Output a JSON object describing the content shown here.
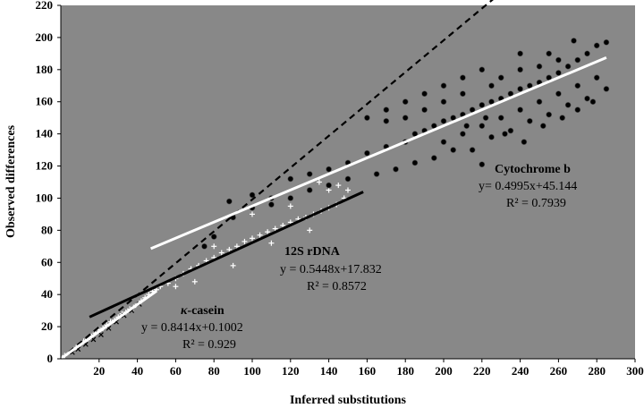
{
  "chart_data": {
    "type": "scatter",
    "xlabel": "Inferred substitutions",
    "ylabel": "Observed differences",
    "xlim": [
      0,
      300
    ],
    "ylim": [
      0,
      220
    ],
    "xticks": [
      "20",
      "40",
      "60",
      "80",
      "100",
      "120",
      "140",
      "160",
      "180",
      "200",
      "220",
      "240",
      "260",
      "280",
      "300"
    ],
    "yticks": [
      "0",
      "20",
      "40",
      "60",
      "80",
      "100",
      "120",
      "140",
      "160",
      "180",
      "200",
      "220"
    ],
    "grid": false,
    "legend": "none",
    "background_color": "#888888",
    "series": [
      {
        "marker": "plus",
        "color": "#ffffff",
        "points": [
          [
            2,
            2
          ],
          [
            5,
            4
          ],
          [
            8,
            7
          ],
          [
            10,
            9
          ],
          [
            12,
            11
          ],
          [
            14,
            12
          ],
          [
            16,
            14
          ],
          [
            18,
            16
          ],
          [
            20,
            18
          ],
          [
            22,
            19
          ],
          [
            24,
            21
          ],
          [
            26,
            23
          ],
          [
            28,
            24
          ],
          [
            30,
            26
          ],
          [
            32,
            28
          ],
          [
            34,
            29
          ],
          [
            36,
            31
          ],
          [
            38,
            32
          ],
          [
            40,
            34
          ],
          [
            42,
            36
          ],
          [
            44,
            38
          ],
          [
            46,
            40
          ],
          [
            50,
            43
          ]
        ]
      },
      {
        "marker": "cross",
        "color": "#000000",
        "points": [
          [
            6,
            4
          ],
          [
            9,
            6
          ],
          [
            13,
            9
          ],
          [
            17,
            12
          ],
          [
            21,
            15
          ],
          [
            25,
            19
          ],
          [
            29,
            23
          ],
          [
            33,
            27
          ],
          [
            37,
            30
          ],
          [
            41,
            34
          ]
        ]
      },
      {
        "marker": "plus",
        "color": "#ffffff",
        "points": [
          [
            48,
            42
          ],
          [
            52,
            45
          ],
          [
            56,
            47
          ],
          [
            60,
            50
          ],
          [
            64,
            53
          ],
          [
            68,
            56
          ],
          [
            72,
            58
          ],
          [
            76,
            61
          ],
          [
            80,
            63
          ],
          [
            84,
            66
          ],
          [
            88,
            68
          ],
          [
            92,
            70
          ],
          [
            96,
            73
          ],
          [
            100,
            75
          ],
          [
            104,
            77
          ],
          [
            108,
            79
          ],
          [
            112,
            81
          ],
          [
            116,
            83
          ],
          [
            120,
            85
          ],
          [
            124,
            87
          ],
          [
            128,
            88
          ],
          [
            132,
            90
          ],
          [
            136,
            92
          ],
          [
            140,
            94
          ],
          [
            144,
            96
          ],
          [
            148,
            100
          ],
          [
            150,
            105
          ],
          [
            145,
            108
          ],
          [
            70,
            48
          ],
          [
            90,
            58
          ],
          [
            110,
            72
          ],
          [
            130,
            80
          ],
          [
            100,
            90
          ],
          [
            120,
            95
          ],
          [
            140,
            105
          ],
          [
            135,
            110
          ],
          [
            80,
            70
          ],
          [
            60,
            45
          ]
        ]
      },
      {
        "marker": "circle",
        "color": "#000000",
        "points": [
          [
            88,
            98
          ],
          [
            100,
            102
          ],
          [
            110,
            100
          ],
          [
            120,
            112
          ],
          [
            130,
            115
          ],
          [
            140,
            118
          ],
          [
            150,
            122
          ],
          [
            160,
            128
          ],
          [
            170,
            132
          ],
          [
            180,
            135
          ],
          [
            185,
            140
          ],
          [
            190,
            142
          ],
          [
            195,
            145
          ],
          [
            200,
            148
          ],
          [
            205,
            150
          ],
          [
            210,
            152
          ],
          [
            215,
            155
          ],
          [
            220,
            158
          ],
          [
            225,
            160
          ],
          [
            230,
            162
          ],
          [
            235,
            165
          ],
          [
            240,
            168
          ],
          [
            245,
            170
          ],
          [
            250,
            172
          ],
          [
            255,
            175
          ],
          [
            260,
            178
          ],
          [
            265,
            182
          ],
          [
            270,
            186
          ],
          [
            275,
            190
          ],
          [
            280,
            195
          ],
          [
            285,
            197
          ],
          [
            268,
            198
          ],
          [
            255,
            190
          ],
          [
            240,
            180
          ],
          [
            225,
            170
          ],
          [
            210,
            165
          ],
          [
            200,
            160
          ],
          [
            190,
            155
          ],
          [
            180,
            150
          ],
          [
            170,
            148
          ],
          [
            200,
            135
          ],
          [
            210,
            140
          ],
          [
            220,
            145
          ],
          [
            230,
            150
          ],
          [
            240,
            155
          ],
          [
            250,
            160
          ],
          [
            260,
            165
          ],
          [
            270,
            170
          ],
          [
            280,
            175
          ],
          [
            215,
            130
          ],
          [
            225,
            138
          ],
          [
            235,
            142
          ],
          [
            245,
            148
          ],
          [
            255,
            152
          ],
          [
            265,
            158
          ],
          [
            275,
            162
          ],
          [
            285,
            168
          ],
          [
            195,
            125
          ],
          [
            205,
            130
          ],
          [
            185,
            122
          ],
          [
            175,
            118
          ],
          [
            165,
            115
          ],
          [
            150,
            112
          ],
          [
            140,
            108
          ],
          [
            130,
            105
          ],
          [
            120,
            100
          ],
          [
            110,
            96
          ],
          [
            100,
            94
          ],
          [
            90,
            88
          ],
          [
            80,
            76
          ],
          [
            75,
            70
          ],
          [
            220,
            121
          ],
          [
            240,
            190
          ],
          [
            260,
            186
          ],
          [
            230,
            175
          ],
          [
            250,
            182
          ],
          [
            200,
            170
          ],
          [
            210,
            175
          ],
          [
            220,
            180
          ],
          [
            190,
            165
          ],
          [
            180,
            160
          ],
          [
            170,
            155
          ],
          [
            160,
            150
          ],
          [
            262,
            150
          ],
          [
            270,
            155
          ],
          [
            278,
            160
          ],
          [
            232,
            140
          ],
          [
            242,
            135
          ],
          [
            252,
            145
          ],
          [
            212,
            145
          ],
          [
            222,
            150
          ]
        ]
      }
    ],
    "lines": [
      {
        "color": "#000000",
        "style": "dashed",
        "x": [
          0,
          228
        ],
        "y": [
          0,
          226
        ]
      },
      {
        "color": "#000000",
        "style": "solid",
        "x": [
          15,
          158
        ],
        "y": [
          26.0,
          103.9
        ]
      },
      {
        "color": "#ffffff",
        "style": "solid",
        "x": [
          0,
          50
        ],
        "y": [
          0.1002,
          42.17
        ]
      },
      {
        "color": "#ffffff",
        "style": "solid",
        "x": [
          47,
          285
        ],
        "y": [
          68.6,
          187.5
        ]
      }
    ],
    "annotations": [
      {
        "title": "κ-casein",
        "equation": "y = 0.8414x+0.1002",
        "r2": "R² = 0.929"
      },
      {
        "title": "12S rDNA",
        "equation": "y = 0.5448x+17.832",
        "r2": "R² = 0.8572"
      },
      {
        "title": "Cytochrome b",
        "equation": "y= 0.4995x+45.144",
        "r2": "R² = 0.7939"
      }
    ]
  }
}
